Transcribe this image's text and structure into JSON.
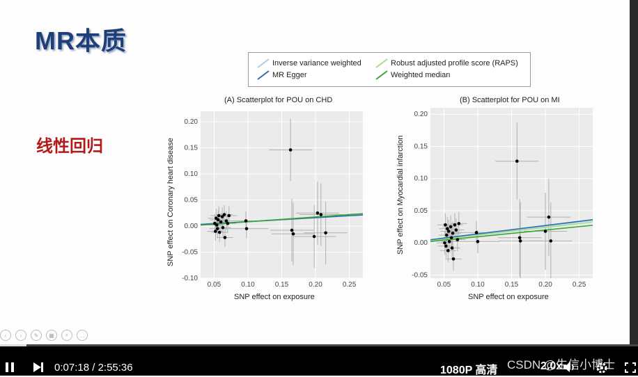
{
  "slide": {
    "title": "MR本质",
    "subtitle": "线性回归"
  },
  "legend": {
    "items": [
      {
        "label": "Inverse variance weighted",
        "color": "#a9cfe8"
      },
      {
        "label": "Robust adjusted profile score (RAPS)",
        "color": "#a6dc8a"
      },
      {
        "label": "MR Egger",
        "color": "#2c70b0"
      },
      {
        "label": "Weighted median",
        "color": "#3aa33a"
      }
    ]
  },
  "chart_data": [
    {
      "type": "scatter",
      "title": "(A) Scatterplot for POU on CHD",
      "xlabel": "SNP effect on exposure",
      "ylabel": "SNP effect on Coronary heart disease",
      "xlim": [
        0.03,
        0.27
      ],
      "ylim": [
        -0.1,
        0.22
      ],
      "xticks": [
        "0.05",
        "0.10",
        "0.15",
        "0.20",
        "0.25"
      ],
      "yticks": [
        "-0.10",
        "-0.05",
        "0.00",
        "0.05",
        "0.10",
        "0.15",
        "0.20"
      ],
      "grid": true,
      "points": [
        {
          "x": 0.051,
          "y": 0.005
        },
        {
          "x": 0.052,
          "y": -0.01
        },
        {
          "x": 0.053,
          "y": 0.015
        },
        {
          "x": 0.054,
          "y": 0.002
        },
        {
          "x": 0.055,
          "y": -0.005
        },
        {
          "x": 0.056,
          "y": 0.012
        },
        {
          "x": 0.057,
          "y": 0.02
        },
        {
          "x": 0.058,
          "y": -0.012
        },
        {
          "x": 0.06,
          "y": 0.008
        },
        {
          "x": 0.062,
          "y": 0.018
        },
        {
          "x": 0.063,
          "y": -0.003
        },
        {
          "x": 0.065,
          "y": 0.022
        },
        {
          "x": 0.066,
          "y": -0.022
        },
        {
          "x": 0.068,
          "y": 0.01
        },
        {
          "x": 0.07,
          "y": 0.005
        },
        {
          "x": 0.072,
          "y": 0.02
        },
        {
          "x": 0.097,
          "y": 0.01
        },
        {
          "x": 0.098,
          "y": -0.005
        },
        {
          "x": 0.163,
          "y": 0.146
        },
        {
          "x": 0.165,
          "y": -0.008
        },
        {
          "x": 0.167,
          "y": -0.015
        },
        {
          "x": 0.198,
          "y": -0.02
        },
        {
          "x": 0.203,
          "y": 0.025
        },
        {
          "x": 0.208,
          "y": 0.022
        },
        {
          "x": 0.215,
          "y": -0.013
        }
      ],
      "lines": [
        {
          "name": "Inverse variance weighted",
          "slope": 0.08,
          "intercept": 0.0,
          "color": "#a9cfe8"
        },
        {
          "name": "Robust adjusted profile score (RAPS)",
          "slope": 0.086,
          "intercept": 0.0,
          "color": "#a6dc8a"
        },
        {
          "name": "MR Egger",
          "slope": 0.075,
          "intercept": 0.001,
          "color": "#2c70b0"
        },
        {
          "name": "Weighted median",
          "slope": 0.092,
          "intercept": -0.001,
          "color": "#3aa33a"
        }
      ]
    },
    {
      "type": "scatter",
      "title": "(B) Scatterplot for POU on MI",
      "xlabel": "SNP effect on exposure",
      "ylabel": "SNP effect on Myocardial infarction",
      "xlim": [
        0.03,
        0.27
      ],
      "ylim": [
        -0.055,
        0.21
      ],
      "xticks": [
        "0.05",
        "0.10",
        "0.15",
        "0.20",
        "0.25"
      ],
      "yticks": [
        "-0.05",
        "0.00",
        "0.05",
        "0.10",
        "0.15",
        "0.20"
      ],
      "grid": true,
      "points": [
        {
          "x": 0.051,
          "y": 0.0
        },
        {
          "x": 0.052,
          "y": 0.028
        },
        {
          "x": 0.053,
          "y": -0.005
        },
        {
          "x": 0.054,
          "y": 0.012
        },
        {
          "x": 0.055,
          "y": 0.022
        },
        {
          "x": 0.056,
          "y": -0.012
        },
        {
          "x": 0.057,
          "y": 0.018
        },
        {
          "x": 0.058,
          "y": 0.002
        },
        {
          "x": 0.06,
          "y": 0.025
        },
        {
          "x": 0.061,
          "y": 0.008
        },
        {
          "x": 0.062,
          "y": -0.008
        },
        {
          "x": 0.063,
          "y": 0.015
        },
        {
          "x": 0.064,
          "y": -0.025
        },
        {
          "x": 0.066,
          "y": 0.028
        },
        {
          "x": 0.068,
          "y": 0.02
        },
        {
          "x": 0.07,
          "y": 0.005
        },
        {
          "x": 0.072,
          "y": 0.03
        },
        {
          "x": 0.098,
          "y": 0.016
        },
        {
          "x": 0.1,
          "y": 0.002
        },
        {
          "x": 0.158,
          "y": 0.127
        },
        {
          "x": 0.162,
          "y": 0.008
        },
        {
          "x": 0.163,
          "y": 0.003
        },
        {
          "x": 0.2,
          "y": 0.018
        },
        {
          "x": 0.205,
          "y": 0.04
        },
        {
          "x": 0.208,
          "y": 0.003
        }
      ],
      "lines": [
        {
          "name": "Inverse variance weighted",
          "slope": 0.13,
          "intercept": 0.0,
          "color": "#a9cfe8"
        },
        {
          "name": "Robust adjusted profile score (RAPS)",
          "slope": 0.12,
          "intercept": 0.0,
          "color": "#a6dc8a"
        },
        {
          "name": "MR Egger",
          "slope": 0.13,
          "intercept": 0.001,
          "color": "#2c70b0"
        },
        {
          "name": "Weighted median",
          "slope": 0.105,
          "intercept": -0.001,
          "color": "#3aa33a"
        }
      ]
    }
  ],
  "player": {
    "current_time": "0:07:18",
    "separator": "/",
    "total_time": "2:55:36",
    "quality": "1080P 高清",
    "speed": "2.0x",
    "progress": 0.041,
    "watermark": "CSDN @生信小博士"
  }
}
